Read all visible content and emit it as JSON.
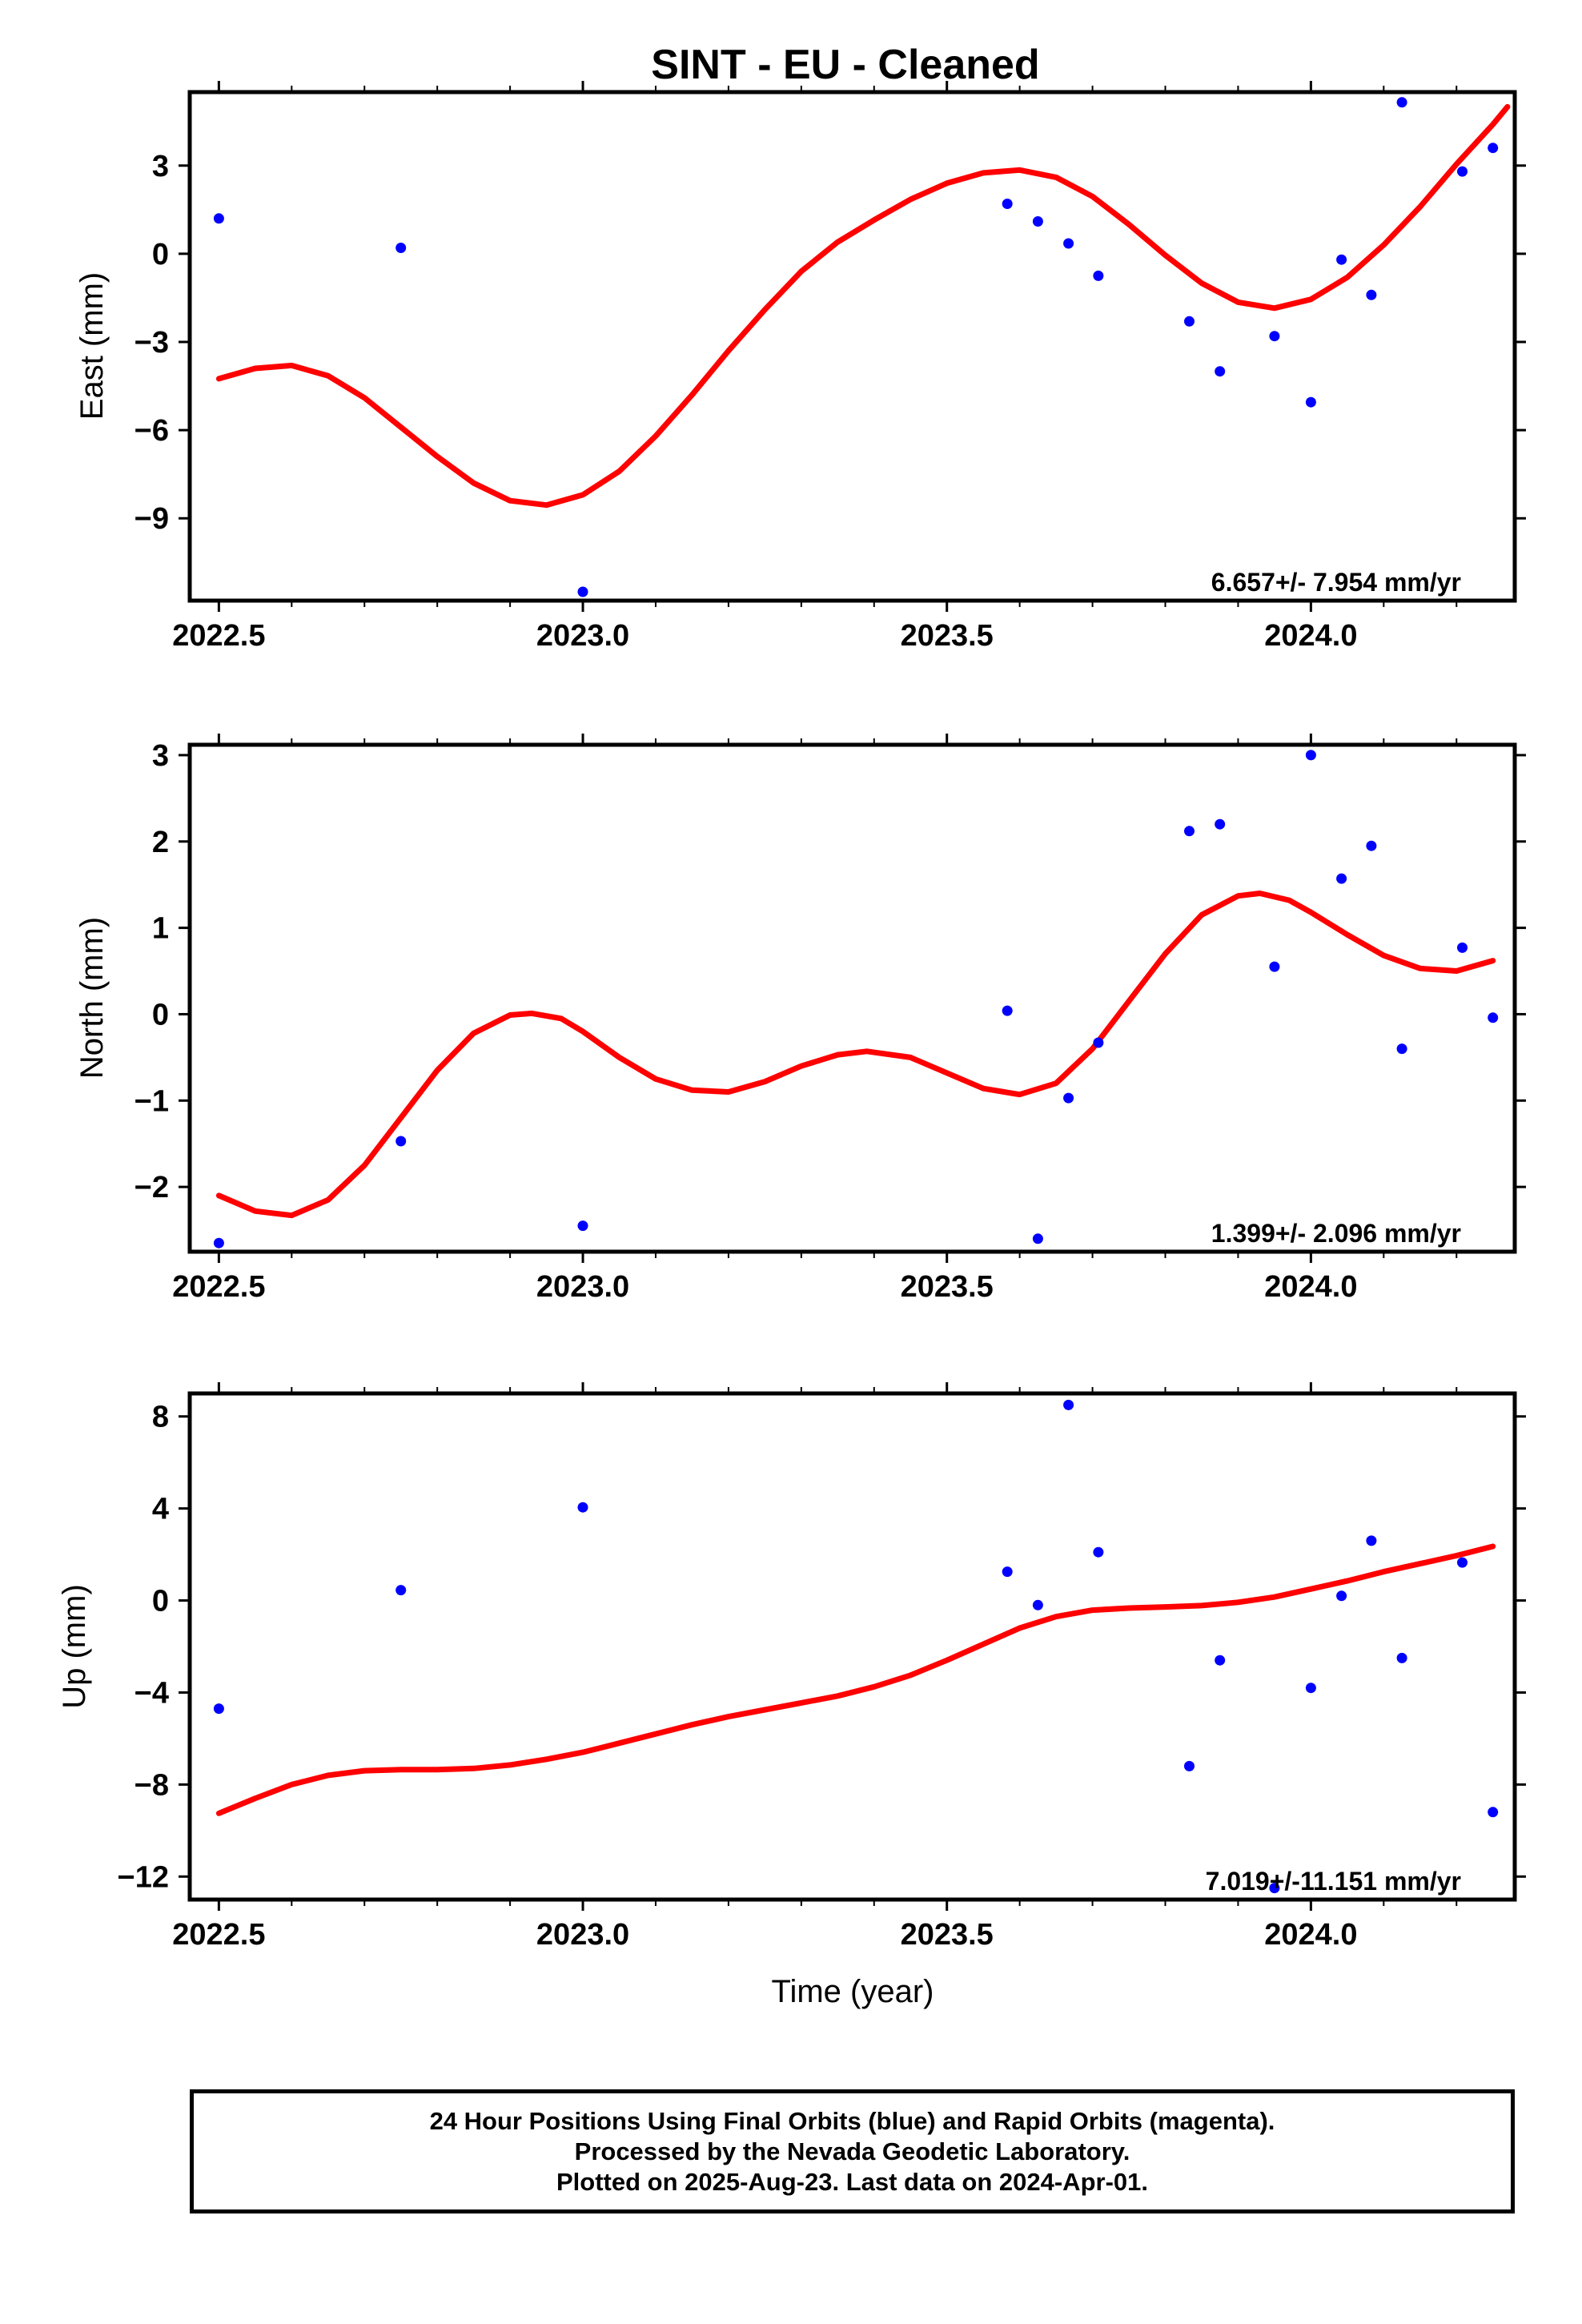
{
  "chart_title": "SINT  - EU - Cleaned",
  "xlabel": "Time (year)",
  "footer": {
    "line1": "24 Hour Positions Using Final Orbits (blue) and Rapid Orbits (magenta).",
    "line2": "Processed by the Nevada Geodetic Laboratory.",
    "line3": "Plotted on 2025-Aug-23. Last data on 2024-Apr-01."
  },
  "colors": {
    "points": "#0000ff",
    "fit": "#ff0000",
    "frame": "#000000"
  },
  "chart_data": [
    {
      "type": "scatter",
      "ylabel": "East (mm)",
      "rate": "6.657+/- 7.954 mm/yr",
      "xlim": [
        2022.46,
        2024.28
      ],
      "ylim": [
        -11.8,
        5.5
      ],
      "x_ticks": [
        2022.5,
        2023.0,
        2023.5,
        2024.0
      ],
      "x_tick_labels": [
        "2022.5",
        "2023.0",
        "2023.5",
        "2024.0"
      ],
      "y_ticks": [
        3,
        0,
        -3,
        -6,
        -9
      ],
      "y_tick_labels": [
        "3",
        "0",
        "−3",
        "−6",
        "−9"
      ],
      "points": [
        [
          2022.5,
          1.2
        ],
        [
          2022.75,
          0.2
        ],
        [
          2023.0,
          -11.5
        ],
        [
          2023.583,
          1.7
        ],
        [
          2023.625,
          1.1
        ],
        [
          2023.667,
          0.35
        ],
        [
          2023.708,
          -0.75
        ],
        [
          2023.833,
          -2.3
        ],
        [
          2023.875,
          -4.0
        ],
        [
          2023.95,
          -2.8
        ],
        [
          2024.0,
          -5.05
        ],
        [
          2024.042,
          -0.2
        ],
        [
          2024.083,
          -1.4
        ],
        [
          2024.125,
          5.15
        ],
        [
          2024.208,
          2.8
        ],
        [
          2024.25,
          3.6
        ]
      ],
      "fit": [
        [
          2022.5,
          -4.25
        ],
        [
          2022.55,
          -3.9
        ],
        [
          2022.6,
          -3.8
        ],
        [
          2022.65,
          -4.15
        ],
        [
          2022.7,
          -4.9
        ],
        [
          2022.75,
          -5.9
        ],
        [
          2022.8,
          -6.9
        ],
        [
          2022.85,
          -7.8
        ],
        [
          2022.9,
          -8.4
        ],
        [
          2022.95,
          -8.55
        ],
        [
          2023.0,
          -8.2
        ],
        [
          2023.05,
          -7.4
        ],
        [
          2023.1,
          -6.2
        ],
        [
          2023.15,
          -4.8
        ],
        [
          2023.2,
          -3.3
        ],
        [
          2023.25,
          -1.9
        ],
        [
          2023.3,
          -0.6
        ],
        [
          2023.35,
          0.4
        ],
        [
          2023.4,
          1.15
        ],
        [
          2023.45,
          1.85
        ],
        [
          2023.5,
          2.4
        ],
        [
          2023.55,
          2.75
        ],
        [
          2023.6,
          2.85
        ],
        [
          2023.65,
          2.6
        ],
        [
          2023.7,
          1.95
        ],
        [
          2023.75,
          1.0
        ],
        [
          2023.8,
          -0.05
        ],
        [
          2023.85,
          -1.0
        ],
        [
          2023.9,
          -1.65
        ],
        [
          2023.95,
          -1.85
        ],
        [
          2024.0,
          -1.55
        ],
        [
          2024.05,
          -0.8
        ],
        [
          2024.1,
          0.3
        ],
        [
          2024.15,
          1.6
        ],
        [
          2024.2,
          3.05
        ],
        [
          2024.25,
          4.4
        ],
        [
          2024.27,
          5.0
        ]
      ]
    },
    {
      "type": "scatter",
      "ylabel": "North (mm)",
      "rate": "1.399+/- 2.096 mm/yr",
      "xlim": [
        2022.46,
        2024.28
      ],
      "ylim": [
        -2.75,
        3.12
      ],
      "x_ticks": [
        2022.5,
        2023.0,
        2023.5,
        2024.0
      ],
      "x_tick_labels": [
        "2022.5",
        "2023.0",
        "2023.5",
        "2024.0"
      ],
      "y_ticks": [
        3,
        2,
        1,
        0,
        -1,
        -2
      ],
      "y_tick_labels": [
        "3",
        "2",
        "1",
        "0",
        "−1",
        "−2"
      ],
      "points": [
        [
          2022.5,
          -2.65
        ],
        [
          2022.75,
          -1.47
        ],
        [
          2023.0,
          -2.45
        ],
        [
          2023.583,
          0.04
        ],
        [
          2023.625,
          -2.6
        ],
        [
          2023.667,
          -0.97
        ],
        [
          2023.708,
          -0.33
        ],
        [
          2023.833,
          2.12
        ],
        [
          2023.875,
          2.2
        ],
        [
          2023.95,
          0.55
        ],
        [
          2024.0,
          3.0
        ],
        [
          2024.042,
          1.57
        ],
        [
          2024.083,
          1.95
        ],
        [
          2024.125,
          -0.4
        ],
        [
          2024.208,
          0.77
        ],
        [
          2024.25,
          -0.04
        ]
      ],
      "fit": [
        [
          2022.5,
          -2.1
        ],
        [
          2022.55,
          -2.28
        ],
        [
          2022.6,
          -2.33
        ],
        [
          2022.65,
          -2.15
        ],
        [
          2022.7,
          -1.75
        ],
        [
          2022.75,
          -1.2
        ],
        [
          2022.8,
          -0.65
        ],
        [
          2022.85,
          -0.22
        ],
        [
          2022.9,
          -0.01
        ],
        [
          2022.93,
          0.01
        ],
        [
          2022.97,
          -0.05
        ],
        [
          2023.0,
          -0.2
        ],
        [
          2023.05,
          -0.5
        ],
        [
          2023.1,
          -0.75
        ],
        [
          2023.15,
          -0.88
        ],
        [
          2023.2,
          -0.9
        ],
        [
          2023.25,
          -0.78
        ],
        [
          2023.3,
          -0.6
        ],
        [
          2023.35,
          -0.47
        ],
        [
          2023.39,
          -0.43
        ],
        [
          2023.45,
          -0.5
        ],
        [
          2023.5,
          -0.68
        ],
        [
          2023.55,
          -0.86
        ],
        [
          2023.6,
          -0.93
        ],
        [
          2023.65,
          -0.8
        ],
        [
          2023.7,
          -0.4
        ],
        [
          2023.75,
          0.15
        ],
        [
          2023.8,
          0.7
        ],
        [
          2023.85,
          1.15
        ],
        [
          2023.9,
          1.37
        ],
        [
          2023.93,
          1.4
        ],
        [
          2023.97,
          1.32
        ],
        [
          2024.0,
          1.18
        ],
        [
          2024.05,
          0.92
        ],
        [
          2024.1,
          0.68
        ],
        [
          2024.15,
          0.53
        ],
        [
          2024.2,
          0.5
        ],
        [
          2024.25,
          0.62
        ]
      ]
    },
    {
      "type": "scatter",
      "ylabel": "Up (mm)",
      "rate": "7.019+/-11.151 mm/yr",
      "xlim": [
        2022.46,
        2024.28
      ],
      "ylim": [
        -13.0,
        9.0
      ],
      "x_ticks": [
        2022.5,
        2023.0,
        2023.5,
        2024.0
      ],
      "x_tick_labels": [
        "2022.5",
        "2023.0",
        "2023.5",
        "2024.0"
      ],
      "y_ticks": [
        8,
        4,
        0,
        -4,
        -8,
        -12
      ],
      "y_tick_labels": [
        "8",
        "4",
        "0",
        "−4",
        "−8",
        "−12"
      ],
      "points": [
        [
          2022.5,
          -4.7
        ],
        [
          2022.75,
          0.45
        ],
        [
          2023.0,
          4.05
        ],
        [
          2023.583,
          1.25
        ],
        [
          2023.625,
          -0.2
        ],
        [
          2023.667,
          8.5
        ],
        [
          2023.708,
          2.1
        ],
        [
          2023.833,
          -7.2
        ],
        [
          2023.875,
          -2.6
        ],
        [
          2023.95,
          -12.5
        ],
        [
          2024.0,
          -3.8
        ],
        [
          2024.042,
          0.2
        ],
        [
          2024.083,
          2.6
        ],
        [
          2024.125,
          -2.5
        ],
        [
          2024.208,
          1.65
        ],
        [
          2024.25,
          -9.2
        ]
      ],
      "fit": [
        [
          2022.5,
          -9.25
        ],
        [
          2022.55,
          -8.6
        ],
        [
          2022.6,
          -8.0
        ],
        [
          2022.65,
          -7.6
        ],
        [
          2022.7,
          -7.4
        ],
        [
          2022.75,
          -7.35
        ],
        [
          2022.8,
          -7.35
        ],
        [
          2022.85,
          -7.3
        ],
        [
          2022.9,
          -7.15
        ],
        [
          2022.95,
          -6.9
        ],
        [
          2023.0,
          -6.6
        ],
        [
          2023.05,
          -6.2
        ],
        [
          2023.1,
          -5.8
        ],
        [
          2023.15,
          -5.4
        ],
        [
          2023.2,
          -5.05
        ],
        [
          2023.25,
          -4.75
        ],
        [
          2023.3,
          -4.45
        ],
        [
          2023.35,
          -4.15
        ],
        [
          2023.4,
          -3.75
        ],
        [
          2023.45,
          -3.25
        ],
        [
          2023.5,
          -2.6
        ],
        [
          2023.55,
          -1.9
        ],
        [
          2023.6,
          -1.2
        ],
        [
          2023.65,
          -0.7
        ],
        [
          2023.7,
          -0.42
        ],
        [
          2023.75,
          -0.33
        ],
        [
          2023.8,
          -0.28
        ],
        [
          2023.85,
          -0.22
        ],
        [
          2023.9,
          -0.08
        ],
        [
          2023.95,
          0.15
        ],
        [
          2024.0,
          0.5
        ],
        [
          2024.05,
          0.85
        ],
        [
          2024.1,
          1.25
        ],
        [
          2024.15,
          1.6
        ],
        [
          2024.2,
          1.95
        ],
        [
          2024.25,
          2.35
        ]
      ]
    }
  ]
}
